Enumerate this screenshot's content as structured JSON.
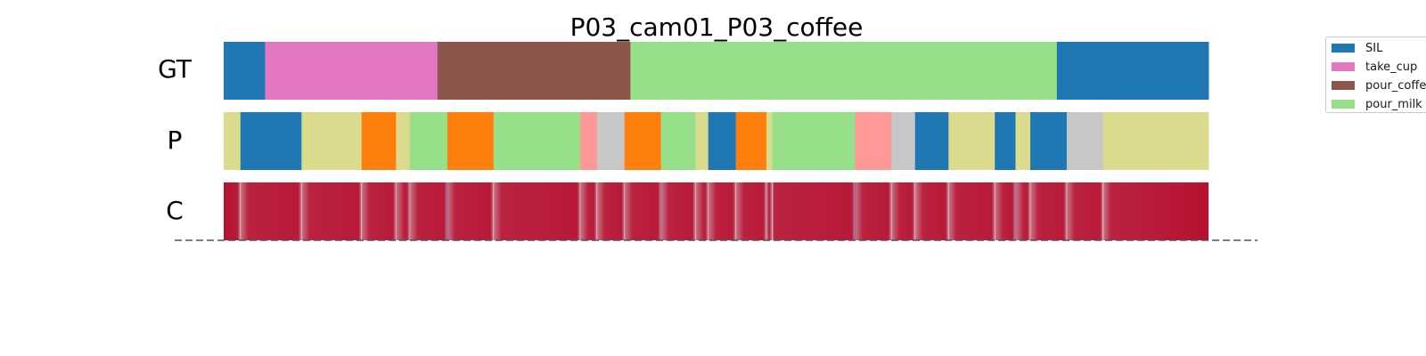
{
  "chart_data": {
    "type": "heatmap",
    "title": "P03_cam01_P03_coffee",
    "row_labels": [
      "GT",
      "P",
      "C"
    ],
    "legend_placement": "top-right",
    "colors": {
      "SIL": "#1f77b4",
      "take_cup": "#e377c2",
      "pour_coffee": "#8c564b",
      "pour_milk": "#98df8a",
      "c1": "#dbdb8d",
      "c2": "#ff7f0e",
      "c3": "#ff9896",
      "c4": "#c7c7c7"
    },
    "legend": [
      {
        "label": "SIL",
        "color": "#1f77b4"
      },
      {
        "label": "take_cup",
        "color": "#e377c2"
      },
      {
        "label": "pour_coffee",
        "color": "#8c564b"
      },
      {
        "label": "pour_milk",
        "color": "#98df8a"
      }
    ],
    "total": 1000,
    "gt_segments": [
      {
        "start": 0,
        "end": 42,
        "class": "SIL"
      },
      {
        "start": 42,
        "end": 217,
        "class": "take_cup"
      },
      {
        "start": 217,
        "end": 413,
        "class": "pour_coffee"
      },
      {
        "start": 413,
        "end": 846,
        "class": "pour_milk"
      },
      {
        "start": 846,
        "end": 1000,
        "class": "SIL"
      }
    ],
    "pred_segments": [
      {
        "start": 0,
        "end": 17,
        "class": "c1"
      },
      {
        "start": 17,
        "end": 79,
        "class": "SIL"
      },
      {
        "start": 79,
        "end": 140,
        "class": "c1"
      },
      {
        "start": 140,
        "end": 175,
        "class": "c2"
      },
      {
        "start": 175,
        "end": 189,
        "class": "c1"
      },
      {
        "start": 189,
        "end": 227,
        "class": "pour_milk"
      },
      {
        "start": 227,
        "end": 274,
        "class": "c2"
      },
      {
        "start": 274,
        "end": 362,
        "class": "pour_milk"
      },
      {
        "start": 362,
        "end": 379,
        "class": "c3"
      },
      {
        "start": 379,
        "end": 407,
        "class": "c4"
      },
      {
        "start": 407,
        "end": 444,
        "class": "c2"
      },
      {
        "start": 444,
        "end": 479,
        "class": "pour_milk"
      },
      {
        "start": 479,
        "end": 492,
        "class": "c1"
      },
      {
        "start": 492,
        "end": 520,
        "class": "SIL"
      },
      {
        "start": 520,
        "end": 551,
        "class": "c2"
      },
      {
        "start": 551,
        "end": 557,
        "class": "c1"
      },
      {
        "start": 557,
        "end": 641,
        "class": "pour_milk"
      },
      {
        "start": 641,
        "end": 678,
        "class": "c3"
      },
      {
        "start": 678,
        "end": 702,
        "class": "c4"
      },
      {
        "start": 702,
        "end": 736,
        "class": "SIL"
      },
      {
        "start": 736,
        "end": 783,
        "class": "c1"
      },
      {
        "start": 783,
        "end": 804,
        "class": "SIL"
      },
      {
        "start": 804,
        "end": 819,
        "class": "c1"
      },
      {
        "start": 819,
        "end": 856,
        "class": "SIL"
      },
      {
        "start": 856,
        "end": 893,
        "class": "c4"
      },
      {
        "start": 893,
        "end": 1000,
        "class": "c1"
      }
    ],
    "confidence_boundaries": [
      {
        "pos": 17,
        "value": 0.45
      },
      {
        "pos": 79,
        "value": 0.55
      },
      {
        "pos": 140,
        "value": 0.5
      },
      {
        "pos": 175,
        "value": 0.4
      },
      {
        "pos": 189,
        "value": 0.35
      },
      {
        "pos": 227,
        "value": 0.05
      },
      {
        "pos": 274,
        "value": 0.45
      },
      {
        "pos": 362,
        "value": 0.4
      },
      {
        "pos": 379,
        "value": 0.45
      },
      {
        "pos": 407,
        "value": 0.4
      },
      {
        "pos": 444,
        "value": 0.15
      },
      {
        "pos": 479,
        "value": 0.45
      },
      {
        "pos": 492,
        "value": 0.4
      },
      {
        "pos": 520,
        "value": 0.45
      },
      {
        "pos": 551,
        "value": 0.35
      },
      {
        "pos": 557,
        "value": 0.45
      },
      {
        "pos": 641,
        "value": 0.1
      },
      {
        "pos": 678,
        "value": 0.45
      },
      {
        "pos": 702,
        "value": 0.45
      },
      {
        "pos": 736,
        "value": 0.45
      },
      {
        "pos": 783,
        "value": 0.45
      },
      {
        "pos": 804,
        "value": 0.15
      },
      {
        "pos": 819,
        "value": 0.45
      },
      {
        "pos": 856,
        "value": 0.45
      },
      {
        "pos": 893,
        "value": 0.5
      }
    ]
  }
}
